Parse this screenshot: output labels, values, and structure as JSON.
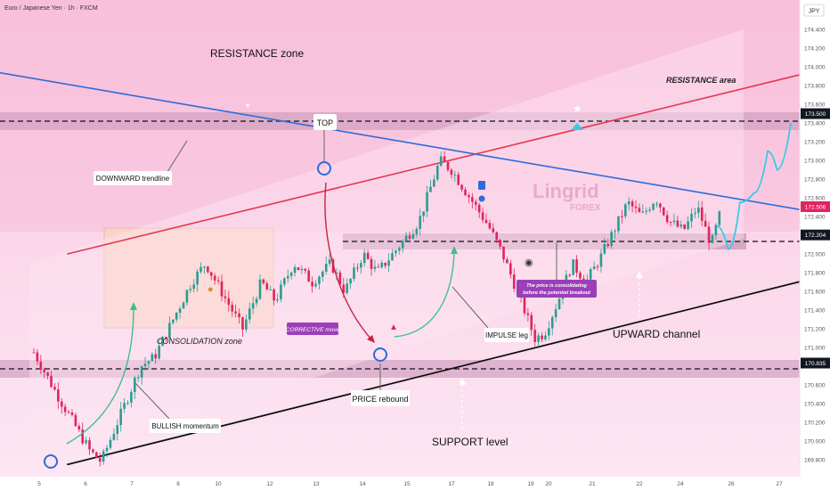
{
  "header": {
    "symbol_title": "Euro / Japanese Yen · 1h · FXCM",
    "currency": "JPY"
  },
  "colors": {
    "background": "#fbd6ec",
    "zone": "#d9a2c2",
    "up_candle": "#2a9d8f",
    "down_candle": "#e0245e",
    "resistance_line": "#e53950",
    "trendline": "#2e6bd8",
    "support_line": "#111111",
    "marker": "#2e6bd8",
    "label_purple": "#9b3fb8",
    "arrow_teal": "#3fbf8f",
    "arrow_red": "#c9213f",
    "projection": "#3cc9e6"
  },
  "annotations": {
    "resistance_zone": "RESISTANCE zone",
    "resistance_area": "RESISTANCE area",
    "top": "TOP",
    "downward_trendline": "DOWNWARD trendline",
    "consolidation_zone": "CONSOLIDATION zone",
    "corrective_move": "CORRECTIVE move",
    "impulse_leg": "IMPULSE leg",
    "upward_channel": "UPWARD channel",
    "price_rebound": "PRICE rebound",
    "bullish_momentum": "BULLISH momentum",
    "support_level": "SUPPORT level",
    "consolidating_note_1": "The price is consolidating",
    "consolidating_note_2": "before the potential breakout"
  },
  "watermark": {
    "line1": "Lingrid",
    "line2": "FOREX"
  },
  "chart_data": {
    "type": "candlestick",
    "symbol": "EURJPY",
    "timeframe": "1h",
    "ylim": [
      169.65,
      174.6
    ],
    "y_ticks": [
      "174.400",
      "174.200",
      "174.000",
      "173.800",
      "173.600",
      "173.400",
      "173.200",
      "173.000",
      "172.800",
      "172.600",
      "172.400",
      "172.000",
      "171.800",
      "171.600",
      "171.400",
      "171.200",
      "171.000",
      "170.600",
      "170.400",
      "170.200",
      "170.000",
      "169.800"
    ],
    "x_ticks": [
      "5",
      "6",
      "7",
      "8",
      "10",
      "12",
      "13",
      "14",
      "15",
      "17",
      "18",
      "19",
      "20",
      "21",
      "22",
      "24",
      "26",
      "27"
    ],
    "price_badges": [
      {
        "label": "173.500",
        "value": 173.5,
        "style": "dark"
      },
      {
        "label": "172.506",
        "value": 172.506,
        "style": "red"
      },
      {
        "label": "172.204",
        "value": 172.204,
        "style": "dark"
      },
      {
        "label": "170.835",
        "value": 170.835,
        "style": "dark"
      }
    ],
    "levels": {
      "resistance": 173.5,
      "mid": 172.204,
      "support": 170.835
    },
    "path_points": [
      [
        0,
        170.95
      ],
      [
        0.5,
        170.5
      ],
      [
        1.2,
        169.9
      ],
      [
        1.45,
        169.78
      ],
      [
        1.8,
        170.2
      ],
      [
        2.3,
        170.8
      ],
      [
        2.6,
        170.9
      ],
      [
        3.0,
        171.3
      ],
      [
        3.4,
        171.7
      ],
      [
        3.7,
        171.9
      ],
      [
        4.1,
        171.55
      ],
      [
        4.5,
        171.2
      ],
      [
        4.9,
        171.7
      ],
      [
        5.2,
        171.5
      ],
      [
        5.6,
        171.9
      ],
      [
        6.0,
        171.7
      ],
      [
        6.4,
        171.9
      ],
      [
        6.7,
        171.6
      ],
      [
        7.1,
        172.0
      ],
      [
        7.4,
        171.8
      ],
      [
        7.9,
        172.1
      ],
      [
        8.3,
        172.35
      ],
      [
        8.75,
        173.0
      ],
      [
        9.0,
        172.9
      ],
      [
        9.4,
        172.6
      ],
      [
        9.8,
        172.3
      ],
      [
        10.1,
        172.0
      ],
      [
        10.5,
        171.5
      ],
      [
        10.8,
        171.1
      ],
      [
        11.0,
        171.15
      ],
      [
        11.3,
        171.5
      ],
      [
        11.6,
        171.9
      ],
      [
        11.9,
        171.7
      ],
      [
        12.2,
        171.95
      ],
      [
        12.5,
        172.25
      ],
      [
        12.8,
        172.55
      ],
      [
        13.1,
        172.4
      ],
      [
        13.4,
        172.6
      ],
      [
        13.7,
        172.35
      ],
      [
        14.0,
        172.25
      ],
      [
        14.3,
        172.5
      ],
      [
        14.6,
        172.1
      ],
      [
        14.8,
        172.45
      ]
    ],
    "projection_points": [
      [
        14.8,
        172.3
      ],
      [
        15.05,
        172.05
      ],
      [
        15.3,
        172.55
      ],
      [
        15.6,
        172.65
      ],
      [
        15.9,
        173.1
      ],
      [
        16.1,
        172.9
      ],
      [
        16.4,
        173.4
      ]
    ],
    "lines": [
      {
        "name": "resistance line",
        "from": [
          0.6,
          172.0
        ],
        "to": [
          20.8,
          174.45
        ]
      },
      {
        "name": "downward trendline",
        "from": [
          -1.0,
          173.95
        ],
        "to": [
          22.0,
          172.0
        ]
      },
      {
        "name": "upward channel support",
        "from": [
          0.6,
          169.75
        ],
        "to": [
          20.8,
          172.25
        ]
      }
    ]
  }
}
